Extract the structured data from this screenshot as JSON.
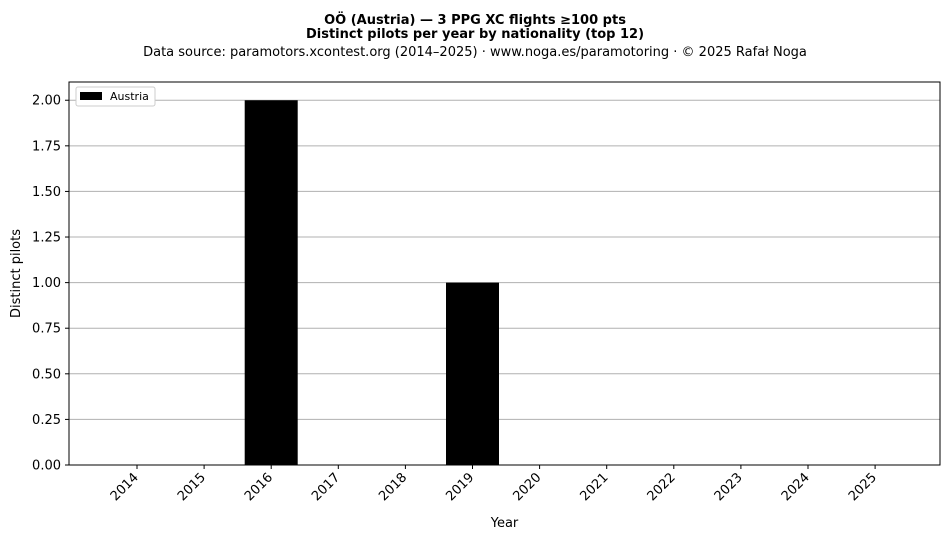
{
  "chart_data": {
    "type": "bar",
    "title": "OÖ (Austria)  —  3 PPG XC flights ≥100 pts",
    "subtitle": "Distinct pilots per year by nationality (top 12)",
    "source": "Data source: paramotors.xcontest.org (2014–2025)  ·  www.noga.es/paramotoring  ·  © 2025 Rafał Noga",
    "xlabel": "Year",
    "ylabel": "Distinct pilots",
    "categories": [
      "2014",
      "2015",
      "2016",
      "2017",
      "2018",
      "2019",
      "2020",
      "2021",
      "2022",
      "2023",
      "2024",
      "2025"
    ],
    "series": [
      {
        "name": "Austria",
        "color": "#000000",
        "values": [
          0,
          0,
          2,
          0,
          0,
          1,
          0,
          0,
          0,
          0,
          0,
          0
        ]
      }
    ],
    "ylim": [
      0,
      2.1
    ],
    "yticks": [
      "0.00",
      "0.25",
      "0.50",
      "0.75",
      "1.00",
      "1.25",
      "1.50",
      "1.75",
      "2.00"
    ],
    "grid": "horizontal",
    "legend_position": "top-left"
  }
}
